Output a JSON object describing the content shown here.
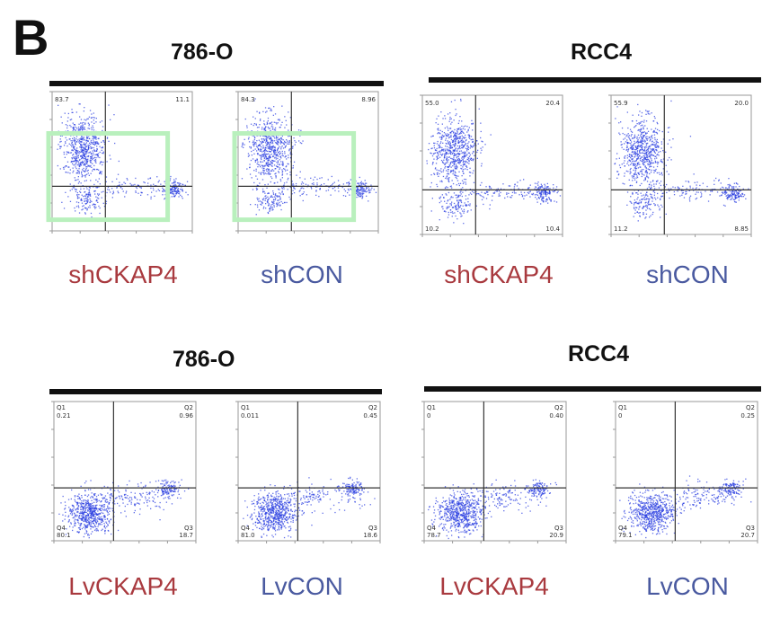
{
  "panel_letter": "B",
  "rows": [
    {
      "groups": [
        {
          "title": "786-O",
          "plots": [
            {
              "label": "shCKAP4",
              "label_color": "#a93a3f",
              "quadrants": {
                "q1": "83.7",
                "q2": "11.1",
                "q3": "",
                "q4": ""
              },
              "highlight": true,
              "highlight_color": "#b9f0bd",
              "dist": "upper"
            },
            {
              "label": "shCON",
              "label_color": "#4a5aa0",
              "quadrants": {
                "q1": "84.3",
                "q2": "8.96",
                "q3": "",
                "q4": ""
              },
              "highlight": true,
              "highlight_color": "#b9f0bd",
              "dist": "upper"
            }
          ]
        },
        {
          "title": "RCC4",
          "plots": [
            {
              "label": "shCKAP4",
              "label_color": "#a93a3f",
              "quadrants": {
                "q1": "55.0",
                "q2": "20.4",
                "q3": "10.2",
                "q4": "10.4"
              },
              "highlight": false,
              "dist": "upper"
            },
            {
              "label": "shCON",
              "label_color": "#4a5aa0",
              "quadrants": {
                "q1": "55.9",
                "q2": "20.0",
                "q3": "11.2",
                "q4": "8.85"
              },
              "highlight": false,
              "dist": "upper"
            }
          ]
        }
      ]
    },
    {
      "groups": [
        {
          "title": "786-O",
          "plots": [
            {
              "label": "LvCKAP4",
              "label_color": "#a93a3f",
              "quadrants": {
                "q1_tag": "Q1",
                "q1": "0.21",
                "q2_tag": "Q2",
                "q2": "0.96",
                "q3_tag": "Q4",
                "q3": "80.1",
                "q4_tag": "Q3",
                "q4": "18.7"
              },
              "highlight": false,
              "dist": "lower"
            },
            {
              "label": "LvCON",
              "label_color": "#4a5aa0",
              "quadrants": {
                "q1_tag": "Q1",
                "q1": "0.011",
                "q2_tag": "Q2",
                "q2": "0.45",
                "q3_tag": "Q4",
                "q3": "81.0",
                "q4_tag": "Q3",
                "q4": "18.6"
              },
              "highlight": false,
              "dist": "lower"
            }
          ]
        },
        {
          "title": "RCC4",
          "plots": [
            {
              "label": "LvCKAP4",
              "label_color": "#a93a3f",
              "quadrants": {
                "q1_tag": "Q1",
                "q1": "0",
                "q2_tag": "Q2",
                "q2": "0.40",
                "q3_tag": "Q4",
                "q3": "78.7",
                "q4_tag": "Q3",
                "q4": "20.9"
              },
              "highlight": false,
              "dist": "lower"
            },
            {
              "label": "LvCON",
              "label_color": "#4a5aa0",
              "quadrants": {
                "q1_tag": "Q1",
                "q1": "0",
                "q2_tag": "Q2",
                "q2": "0.25",
                "q3_tag": "Q4",
                "q3": "79.1",
                "q4_tag": "Q3",
                "q4": "20.7"
              },
              "highlight": false,
              "dist": "lower"
            }
          ]
        }
      ]
    }
  ],
  "colors": {
    "dots": "#2b3fe0",
    "axis": "#555555",
    "text": "#111111"
  }
}
